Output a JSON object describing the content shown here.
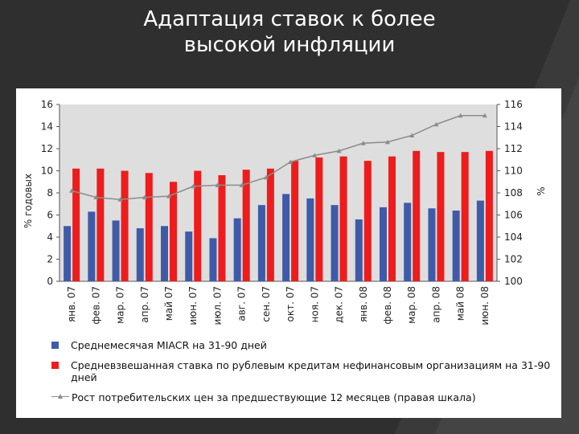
{
  "slide": {
    "title_line1": "Адаптация ставок к более",
    "title_line2": "высокой инфляции"
  },
  "chart_data": {
    "type": "bar",
    "ylabel": "% годовых",
    "y2label": "%",
    "ylim": [
      0,
      16
    ],
    "y2lim": [
      100,
      116
    ],
    "yticks": [
      "0",
      "2",
      "4",
      "6",
      "8",
      "10",
      "12",
      "14",
      "16"
    ],
    "y2ticks": [
      "100",
      "102",
      "104",
      "106",
      "108",
      "110",
      "112",
      "114",
      "116"
    ],
    "categories": [
      "янв. 07",
      "фев. 07",
      "мар. 07",
      "апр. 07",
      "май 07",
      "июн. 07",
      "июл. 07",
      "авг. 07",
      "сен. 07",
      "окт. 07",
      "ноя. 07",
      "дек. 07",
      "янв. 08",
      "фев. 08",
      "мар. 08",
      "апр. 08",
      "май 08",
      "июн. 08"
    ],
    "series": [
      {
        "name": "Среднемесячая MIACR на 31-90 дней",
        "type": "bar",
        "axis": "left",
        "color": "#3f5ba8",
        "values": [
          5.0,
          6.3,
          5.5,
          4.8,
          5.0,
          4.5,
          3.9,
          5.7,
          6.9,
          7.9,
          7.5,
          6.9,
          5.6,
          6.7,
          7.1,
          6.6,
          6.4,
          7.3
        ]
      },
      {
        "name": "Средневзвешанная ставка по рублевым кредитам нефинансовым организациям на 31-90 дней",
        "type": "bar",
        "axis": "left",
        "color": "#ee1c1c",
        "values": [
          10.2,
          10.2,
          10.0,
          9.8,
          9.0,
          10.0,
          9.6,
          10.1,
          10.2,
          10.9,
          11.2,
          11.3,
          10.9,
          11.3,
          11.8,
          11.7,
          11.7,
          11.8
        ]
      },
      {
        "name": "Рост потребительских цен за предшествующие 12 месяцев (правая шкала)",
        "type": "line",
        "axis": "right",
        "color": "#8c8c8c",
        "values": [
          108.2,
          107.6,
          107.4,
          107.6,
          107.7,
          108.6,
          108.7,
          108.7,
          109.4,
          110.8,
          111.4,
          111.8,
          112.5,
          112.6,
          113.2,
          114.2,
          115.0,
          115.0
        ]
      }
    ],
    "grid": false,
    "legend_position": "bottom"
  }
}
